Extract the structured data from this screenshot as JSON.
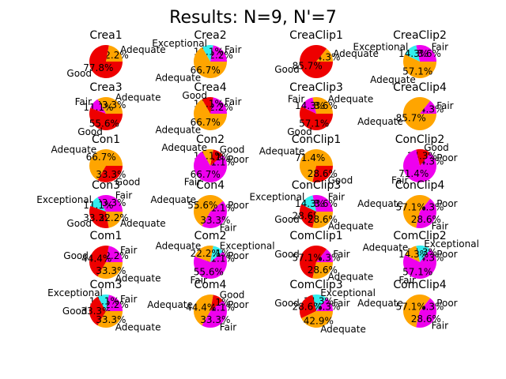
{
  "figure_title": "Results: N=9, N'=7",
  "colors": {
    "Adequate": "#ffa500",
    "Good": "#ee0000",
    "Fair": "#ee00ee",
    "Exceptional": "#33eeee",
    "Poor": "#ee00ee"
  },
  "chart_data": [
    {
      "type": "pie",
      "title": "Crea1",
      "slices": [
        {
          "label": "Adequate",
          "pct": "22.2%",
          "value": 22.2
        },
        {
          "label": "Good",
          "pct": "77.8%",
          "value": 77.8
        }
      ]
    },
    {
      "type": "pie",
      "title": "Crea2",
      "slices": [
        {
          "label": "Fair",
          "pct": "22.2%",
          "value": 22.2
        },
        {
          "label": "Exceptional",
          "pct": "11.1%",
          "value": 11.1
        },
        {
          "label": "Adequate",
          "pct": "66.7%",
          "value": 66.7
        }
      ]
    },
    {
      "type": "pie",
      "title": "CreaClip1",
      "slices": [
        {
          "label": "Adequate",
          "pct": "14.3%",
          "value": 14.3
        },
        {
          "label": "Good",
          "pct": "85.7%",
          "value": 85.7
        }
      ]
    },
    {
      "type": "pie",
      "title": "CreaClip2",
      "slices": [
        {
          "label": "Fair",
          "pct": "28.6%",
          "value": 28.6
        },
        {
          "label": "Exceptional",
          "pct": "14.3%",
          "value": 14.3
        },
        {
          "label": "Adequate",
          "pct": "57.1%",
          "value": 57.1
        }
      ]
    },
    {
      "type": "pie",
      "title": "Crea3",
      "slices": [
        {
          "label": "Adequate",
          "pct": "33.3%",
          "value": 33.3
        },
        {
          "label": "Fair",
          "pct": "11.1%",
          "value": 11.1
        },
        {
          "label": "Good",
          "pct": "55.6%",
          "value": 55.6
        }
      ]
    },
    {
      "type": "pie",
      "title": "Crea4",
      "slices": [
        {
          "label": "Fair",
          "pct": "22.2%",
          "value": 22.2
        },
        {
          "label": "Good",
          "pct": "11.1%",
          "value": 11.1
        },
        {
          "label": "Adequate",
          "pct": "66.7%",
          "value": 66.7
        }
      ]
    },
    {
      "type": "pie",
      "title": "CreaClip3",
      "slices": [
        {
          "label": "Adequate",
          "pct": "28.6%",
          "value": 28.6
        },
        {
          "label": "Fair",
          "pct": "14.3%",
          "value": 14.3
        },
        {
          "label": "Good",
          "pct": "57.1%",
          "value": 57.1
        }
      ]
    },
    {
      "type": "pie",
      "title": "CreaClip4",
      "slices": [
        {
          "label": "Fair",
          "pct": "14.3%",
          "value": 14.3
        },
        {
          "label": "Adequate",
          "pct": "85.7%",
          "value": 85.7
        }
      ]
    },
    {
      "type": "pie",
      "title": "Con1",
      "slices": [
        {
          "label": "Adequate",
          "pct": "66.7%",
          "value": 66.7
        },
        {
          "label": "Good",
          "pct": "33.3%",
          "value": 33.3
        }
      ]
    },
    {
      "type": "pie",
      "title": "Con2",
      "slices": [
        {
          "label": "Poor",
          "pct": "11.1%",
          "value": 11.1
        },
        {
          "label": "Good",
          "pct": "11.1%",
          "value": 11.1
        },
        {
          "label": "Adequate",
          "pct": "11.1%",
          "value": 11.1
        },
        {
          "label": "Fair",
          "pct": "66.7%",
          "value": 66.7
        }
      ]
    },
    {
      "type": "pie",
      "title": "ConClip1",
      "slices": [
        {
          "label": "Adequate",
          "pct": "71.4%",
          "value": 71.4
        },
        {
          "label": "Good",
          "pct": "28.6%",
          "value": 28.6
        }
      ]
    },
    {
      "type": "pie",
      "title": "ConClip2",
      "slices": [
        {
          "label": "Poor",
          "pct": "14.3%",
          "value": 14.3
        },
        {
          "label": "Good",
          "pct": "14.3%",
          "value": 14.3
        },
        {
          "label": "Fair",
          "pct": "71.4%",
          "value": 71.4
        }
      ]
    },
    {
      "type": "pie",
      "title": "Con3",
      "slices": [
        {
          "label": "Fair",
          "pct": "33.3%",
          "value": 33.3
        },
        {
          "label": "Exceptional",
          "pct": "11.1%",
          "value": 11.1
        },
        {
          "label": "Good",
          "pct": "33.3%",
          "value": 33.3
        },
        {
          "label": "Adequate",
          "pct": "22.2%",
          "value": 22.2
        }
      ]
    },
    {
      "type": "pie",
      "title": "Con4",
      "slices": [
        {
          "label": "Poor",
          "pct": "11.1%",
          "value": 11.1
        },
        {
          "label": "Adequate",
          "pct": "55.6%",
          "value": 55.6
        },
        {
          "label": "Fair",
          "pct": "33.3%",
          "value": 33.3
        }
      ]
    },
    {
      "type": "pie",
      "title": "ConClip3",
      "slices": [
        {
          "label": "Fair",
          "pct": "28.6%",
          "value": 28.6
        },
        {
          "label": "Exceptional",
          "pct": "14.3%",
          "value": 14.3
        },
        {
          "label": "Good",
          "pct": "28.6%",
          "value": 28.6
        },
        {
          "label": "Adequate",
          "pct": "28.6%",
          "value": 28.6
        }
      ]
    },
    {
      "type": "pie",
      "title": "ConClip4",
      "slices": [
        {
          "label": "Poor",
          "pct": "14.3%",
          "value": 14.3
        },
        {
          "label": "Adequate",
          "pct": "57.1%",
          "value": 57.1
        },
        {
          "label": "Fair",
          "pct": "28.6%",
          "value": 28.6
        }
      ]
    },
    {
      "type": "pie",
      "title": "Com1",
      "slices": [
        {
          "label": "Fair",
          "pct": "22.2%",
          "value": 22.2
        },
        {
          "label": "Good",
          "pct": "44.4%",
          "value": 44.4
        },
        {
          "label": "Adequate",
          "pct": "33.3%",
          "value": 33.3
        }
      ]
    },
    {
      "type": "pie",
      "title": "Com2",
      "slices": [
        {
          "label": "Poor",
          "pct": "11.1%",
          "value": 11.1
        },
        {
          "label": "Exceptional",
          "pct": "11.1%",
          "value": 11.1
        },
        {
          "label": "Adequate",
          "pct": "22.2%",
          "value": 22.2
        },
        {
          "label": "Fair",
          "pct": "55.6%",
          "value": 55.6
        }
      ]
    },
    {
      "type": "pie",
      "title": "ComClip1",
      "slices": [
        {
          "label": "Fair",
          "pct": "14.3%",
          "value": 14.3
        },
        {
          "label": "Good",
          "pct": "57.1%",
          "value": 57.1
        },
        {
          "label": "Adequate",
          "pct": "28.6%",
          "value": 28.6
        }
      ]
    },
    {
      "type": "pie",
      "title": "ComClip2",
      "slices": [
        {
          "label": "Poor",
          "pct": "14.3%",
          "value": 14.3
        },
        {
          "label": "Exceptional",
          "pct": "14.3%",
          "value": 14.3
        },
        {
          "label": "Adequate",
          "pct": "14.3%",
          "value": 14.3
        },
        {
          "label": "Fair",
          "pct": "57.1%",
          "value": 57.1
        }
      ]
    },
    {
      "type": "pie",
      "title": "Com3",
      "slices": [
        {
          "label": "Fair",
          "pct": "22.2%",
          "value": 22.2
        },
        {
          "label": "Exceptional",
          "pct": "11.1%",
          "value": 11.1
        },
        {
          "label": "Good",
          "pct": "33.3%",
          "value": 33.3
        },
        {
          "label": "Adequate",
          "pct": "33.3%",
          "value": 33.3
        }
      ]
    },
    {
      "type": "pie",
      "title": "Com4",
      "slices": [
        {
          "label": "Poor",
          "pct": "11.1%",
          "value": 11.1
        },
        {
          "label": "Good",
          "pct": "11.1%",
          "value": 11.1
        },
        {
          "label": "Adequate",
          "pct": "44.4%",
          "value": 44.4
        },
        {
          "label": "Fair",
          "pct": "33.3%",
          "value": 33.3
        }
      ]
    },
    {
      "type": "pie",
      "title": "ComClip3",
      "slices": [
        {
          "label": "Fair",
          "pct": "14.3%",
          "value": 14.3
        },
        {
          "label": "Exceptional",
          "pct": "14.3%",
          "value": 14.3
        },
        {
          "label": "Good",
          "pct": "28.6%",
          "value": 28.6
        },
        {
          "label": "Adequate",
          "pct": "42.9%",
          "value": 42.9
        }
      ]
    },
    {
      "type": "pie",
      "title": "ComClip4",
      "slices": [
        {
          "label": "Poor",
          "pct": "14.3%",
          "value": 14.3
        },
        {
          "label": "Adequate",
          "pct": "57.1%",
          "value": 57.1
        },
        {
          "label": "Fair",
          "pct": "28.6%",
          "value": 28.6
        }
      ]
    }
  ]
}
